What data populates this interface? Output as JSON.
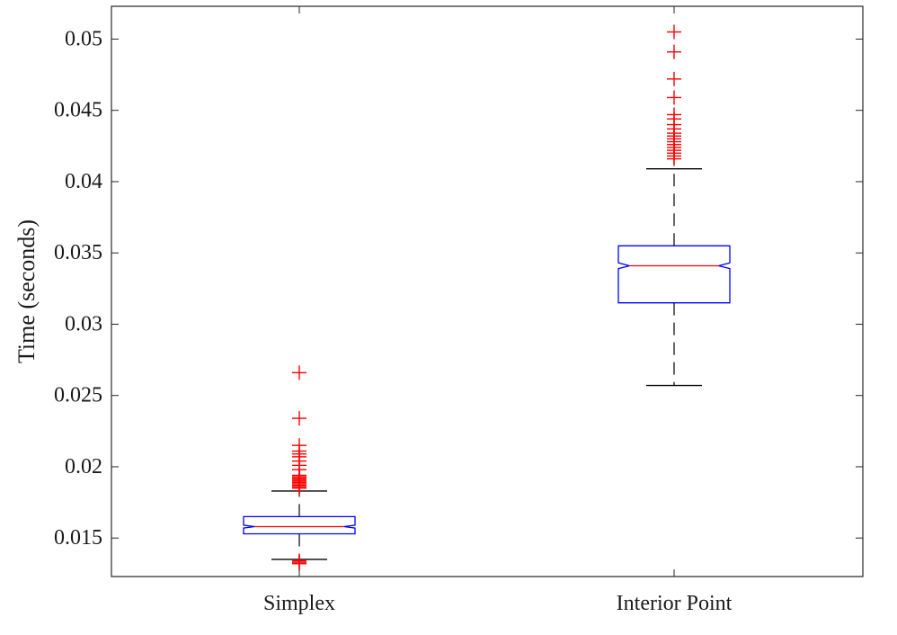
{
  "chart_data": {
    "type": "boxplot",
    "ylabel": "Time (seconds)",
    "ylim": [
      0.0123,
      0.0523
    ],
    "yticks": [
      0.015,
      0.02,
      0.025,
      0.03,
      0.035,
      0.04,
      0.045,
      0.05
    ],
    "ytick_labels": [
      "0.015",
      "0.02",
      "0.025",
      "0.03",
      "0.035",
      "0.04",
      "0.045",
      "0.05"
    ],
    "notched": true,
    "grid": false,
    "colors": {
      "box": "#0000ff",
      "median": "#ff0000",
      "whisker": "#000000",
      "outlier": "#ff0000",
      "axes": "#262626"
    },
    "categories": [
      "Simplex",
      "Interior Point"
    ],
    "boxes": [
      {
        "name": "Simplex",
        "whisker_low": 0.0135,
        "q1": 0.0153,
        "notch_low": 0.0157,
        "median": 0.0158,
        "notch_high": 0.0159,
        "q3": 0.0165,
        "whisker_high": 0.0183,
        "outliers": [
          0.0132,
          0.0133,
          0.0134,
          0.0185,
          0.0186,
          0.0187,
          0.0188,
          0.0189,
          0.019,
          0.0191,
          0.0192,
          0.0193,
          0.0194,
          0.0198,
          0.0201,
          0.0204,
          0.0207,
          0.0209,
          0.0211,
          0.0215,
          0.0234,
          0.0266
        ]
      },
      {
        "name": "Interior Point",
        "whisker_low": 0.0257,
        "q1": 0.0315,
        "notch_low": 0.0339,
        "median": 0.0341,
        "notch_high": 0.0343,
        "q3": 0.0355,
        "whisker_high": 0.0409,
        "outliers": [
          0.0416,
          0.0418,
          0.042,
          0.0422,
          0.0424,
          0.0426,
          0.0428,
          0.043,
          0.0432,
          0.0434,
          0.0437,
          0.044,
          0.0444,
          0.0447,
          0.0459,
          0.0472,
          0.0491,
          0.0505
        ]
      }
    ]
  }
}
